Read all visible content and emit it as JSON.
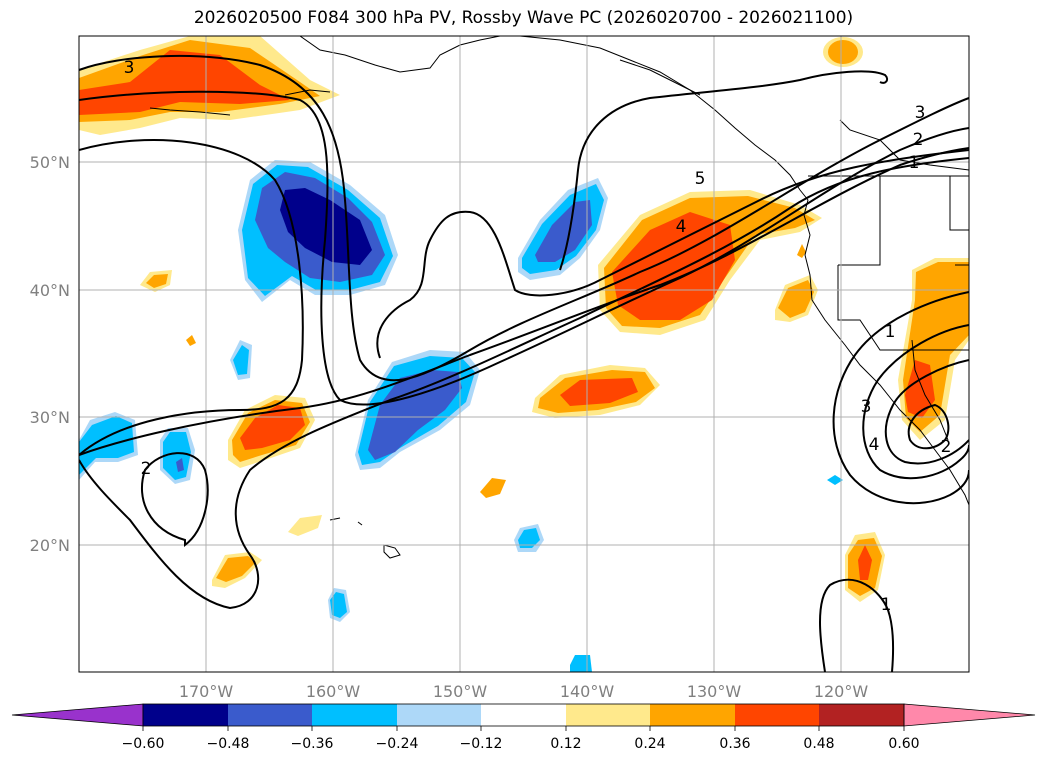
{
  "title": "2026020500 F084 300 hPa PV, Rossby Wave PC (2026020700 - 2026021100)",
  "lat_labels": [
    "50°N",
    "40°N",
    "30°N",
    "20°N"
  ],
  "lon_labels": [
    "170°W",
    "160°W",
    "150°W",
    "140°W",
    "130°W",
    "120°W"
  ],
  "colorbar": {
    "ticks": [
      "−0.60",
      "−0.48",
      "−0.36",
      "−0.24",
      "−0.12",
      "0.12",
      "0.24",
      "0.36",
      "0.48",
      "0.60"
    ],
    "colors": [
      "#9932cc",
      "#00008b",
      "#3a5bcc",
      "#00bfff",
      "#add8f8",
      "#ffffff",
      "#ffe98c",
      "#ffa500",
      "#ff4500",
      "#b22222",
      "#ff88aa"
    ]
  },
  "contour_labels": [
    "3",
    "3",
    "2",
    "1",
    "5",
    "4",
    "1",
    "3",
    "4",
    "2",
    "2",
    "1"
  ]
}
